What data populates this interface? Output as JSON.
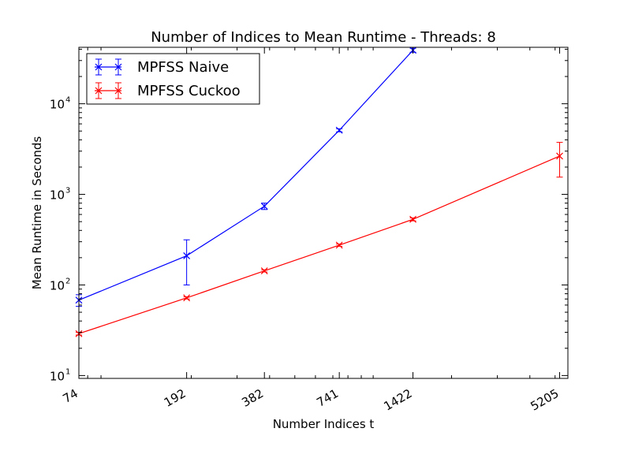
{
  "chart_data": {
    "type": "line",
    "title": "Number of Indices to Mean Runtime - Threads: 8",
    "xlabel": "Number Indices t",
    "ylabel": "Mean Runtime in Seconds",
    "xscale": "log",
    "yscale": "log",
    "xlim": [
      74,
      5600
    ],
    "ylim": [
      9.3,
      42000
    ],
    "x_ticks": [
      {
        "value": 74,
        "label": "74"
      },
      {
        "value": 192,
        "label": "192"
      },
      {
        "value": 382,
        "label": "382"
      },
      {
        "value": 741,
        "label": "741"
      },
      {
        "value": 1422,
        "label": "1422"
      },
      {
        "value": 5205,
        "label": "5205"
      }
    ],
    "y_ticks": [
      {
        "value": 10,
        "label": "10",
        "exp": "1"
      },
      {
        "value": 100,
        "label": "10",
        "exp": "2"
      },
      {
        "value": 1000,
        "label": "10",
        "exp": "3"
      },
      {
        "value": 10000,
        "label": "10",
        "exp": "4"
      }
    ],
    "grid": false,
    "legend_position": "top-left",
    "series": [
      {
        "name": "MPFSS Naive",
        "color": "#0000ff",
        "marker": "x",
        "points": [
          {
            "x": 74,
            "y": 68,
            "err_low": 58,
            "err_high": 78
          },
          {
            "x": 192,
            "y": 210,
            "err_low": 100,
            "err_high": 315
          },
          {
            "x": 382,
            "y": 740,
            "err_low": 680,
            "err_high": 800
          },
          {
            "x": 741,
            "y": 5100,
            "err_low": 4900,
            "err_high": 5300
          },
          {
            "x": 1422,
            "y": 39000,
            "err_low": 37000,
            "err_high": 41000
          }
        ]
      },
      {
        "name": "MPFSS Cuckoo",
        "color": "#ff0000",
        "marker": "x",
        "points": [
          {
            "x": 74,
            "y": 29,
            "err_low": 28,
            "err_high": 30
          },
          {
            "x": 192,
            "y": 72,
            "err_low": 70,
            "err_high": 74
          },
          {
            "x": 382,
            "y": 143,
            "err_low": 139,
            "err_high": 147
          },
          {
            "x": 741,
            "y": 275,
            "err_low": 267,
            "err_high": 283
          },
          {
            "x": 1422,
            "y": 530,
            "err_low": 510,
            "err_high": 550
          },
          {
            "x": 5205,
            "y": 2650,
            "err_low": 1550,
            "err_high": 3750
          }
        ]
      }
    ]
  }
}
